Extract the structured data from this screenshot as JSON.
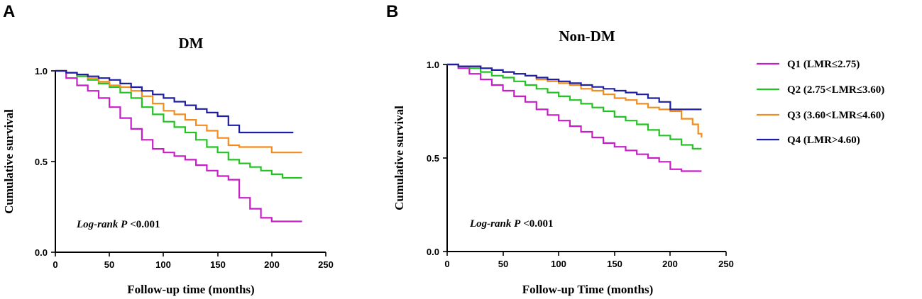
{
  "chart_data": [
    {
      "panel_label": "A",
      "type": "line",
      "step": true,
      "title": "DM",
      "xlabel": "Follow-up time (months)",
      "ylabel": "Cumulative survival",
      "xlim": [
        0,
        250
      ],
      "ylim": [
        0,
        1.0
      ],
      "xticks": [
        "0",
        "50",
        "100",
        "150",
        "200",
        "250"
      ],
      "yticks": [
        "0.0",
        "0.5",
        "1.0"
      ],
      "annotation": {
        "italic": "Log-rank P",
        "rest": "<0.001"
      },
      "series": [
        {
          "name": "Q1 (LMR≤2.75)",
          "color": "#c81ec8",
          "x": [
            0,
            10,
            20,
            30,
            40,
            50,
            60,
            70,
            80,
            90,
            100,
            110,
            120,
            130,
            140,
            150,
            160,
            170,
            180,
            190,
            200,
            210,
            220,
            228
          ],
          "y": [
            1.0,
            0.96,
            0.92,
            0.89,
            0.85,
            0.8,
            0.74,
            0.68,
            0.62,
            0.57,
            0.55,
            0.53,
            0.51,
            0.48,
            0.45,
            0.42,
            0.4,
            0.3,
            0.24,
            0.19,
            0.17,
            0.17,
            0.17,
            0.17
          ]
        },
        {
          "name": "Q2 (2.75<LMR≤3.60)",
          "color": "#22c322",
          "x": [
            0,
            10,
            20,
            30,
            40,
            50,
            60,
            70,
            80,
            90,
            100,
            110,
            120,
            130,
            140,
            150,
            160,
            170,
            180,
            190,
            200,
            210,
            220,
            228
          ],
          "y": [
            1.0,
            0.99,
            0.97,
            0.95,
            0.93,
            0.91,
            0.88,
            0.85,
            0.8,
            0.76,
            0.72,
            0.69,
            0.66,
            0.62,
            0.58,
            0.55,
            0.51,
            0.49,
            0.47,
            0.45,
            0.43,
            0.41,
            0.41,
            0.41
          ]
        },
        {
          "name": "Q3 (3.60<LMR≤4.60)",
          "color": "#f28c1e",
          "x": [
            0,
            10,
            20,
            30,
            40,
            50,
            60,
            70,
            80,
            90,
            100,
            110,
            120,
            130,
            140,
            150,
            160,
            170,
            180,
            190,
            200,
            210,
            220,
            228
          ],
          "y": [
            1.0,
            0.99,
            0.98,
            0.96,
            0.94,
            0.92,
            0.91,
            0.89,
            0.86,
            0.82,
            0.78,
            0.76,
            0.73,
            0.7,
            0.67,
            0.63,
            0.59,
            0.58,
            0.58,
            0.58,
            0.55,
            0.55,
            0.55,
            0.55
          ]
        },
        {
          "name": "Q4 (LMR>4.60)",
          "color": "#1e1ea0",
          "x": [
            0,
            10,
            20,
            30,
            40,
            50,
            60,
            70,
            80,
            90,
            100,
            110,
            120,
            130,
            140,
            150,
            160,
            170,
            180,
            190,
            200,
            210,
            220
          ],
          "y": [
            1.0,
            0.99,
            0.98,
            0.97,
            0.96,
            0.95,
            0.93,
            0.91,
            0.89,
            0.87,
            0.85,
            0.83,
            0.81,
            0.79,
            0.77,
            0.75,
            0.7,
            0.66,
            0.66,
            0.66,
            0.66,
            0.66,
            0.66
          ]
        }
      ]
    },
    {
      "panel_label": "B",
      "type": "line",
      "step": true,
      "title": "Non-DM",
      "xlabel": "Follow-up Time (months)",
      "ylabel": "Cumulative survival",
      "xlim": [
        0,
        250
      ],
      "ylim": [
        0,
        1.0
      ],
      "xticks": [
        "0",
        "50",
        "100",
        "150",
        "200",
        "250"
      ],
      "yticks": [
        "0.0",
        "0.5",
        "1.0"
      ],
      "annotation": {
        "italic": "Log-rank P",
        "rest": "<0.001"
      },
      "series": [
        {
          "name": "Q1 (LMR≤2.75)",
          "color": "#c81ec8",
          "x": [
            0,
            10,
            20,
            30,
            40,
            50,
            60,
            70,
            80,
            90,
            100,
            110,
            120,
            130,
            140,
            150,
            160,
            170,
            180,
            190,
            200,
            210,
            220,
            228
          ],
          "y": [
            1.0,
            0.98,
            0.95,
            0.92,
            0.89,
            0.86,
            0.83,
            0.8,
            0.76,
            0.73,
            0.7,
            0.67,
            0.64,
            0.61,
            0.58,
            0.56,
            0.54,
            0.52,
            0.5,
            0.48,
            0.44,
            0.43,
            0.43,
            0.43
          ]
        },
        {
          "name": "Q2 (2.75<LMR≤3.60)",
          "color": "#22c322",
          "x": [
            0,
            10,
            20,
            30,
            40,
            50,
            60,
            70,
            80,
            90,
            100,
            110,
            120,
            130,
            140,
            150,
            160,
            170,
            180,
            190,
            200,
            210,
            220,
            228
          ],
          "y": [
            1.0,
            0.99,
            0.98,
            0.96,
            0.94,
            0.93,
            0.91,
            0.89,
            0.87,
            0.85,
            0.83,
            0.81,
            0.79,
            0.77,
            0.75,
            0.72,
            0.7,
            0.68,
            0.65,
            0.62,
            0.6,
            0.57,
            0.55,
            0.55
          ]
        },
        {
          "name": "Q3 (3.60<LMR≤4.60)",
          "color": "#f28c1e",
          "x": [
            0,
            10,
            20,
            30,
            40,
            50,
            60,
            70,
            80,
            90,
            100,
            110,
            120,
            130,
            140,
            150,
            160,
            170,
            180,
            190,
            200,
            210,
            220,
            225,
            228
          ],
          "y": [
            1.0,
            0.99,
            0.99,
            0.98,
            0.97,
            0.96,
            0.95,
            0.94,
            0.92,
            0.91,
            0.9,
            0.89,
            0.87,
            0.86,
            0.84,
            0.82,
            0.81,
            0.79,
            0.77,
            0.76,
            0.75,
            0.71,
            0.68,
            0.63,
            0.61
          ]
        },
        {
          "name": "Q4 (LMR>4.60)",
          "color": "#1e1ea0",
          "x": [
            0,
            10,
            20,
            30,
            40,
            50,
            60,
            70,
            80,
            90,
            100,
            110,
            120,
            130,
            140,
            150,
            160,
            170,
            180,
            190,
            200,
            210,
            220,
            228
          ],
          "y": [
            1.0,
            0.99,
            0.99,
            0.98,
            0.97,
            0.96,
            0.95,
            0.94,
            0.93,
            0.92,
            0.91,
            0.9,
            0.89,
            0.88,
            0.87,
            0.86,
            0.85,
            0.84,
            0.82,
            0.8,
            0.76,
            0.76,
            0.76,
            0.76
          ]
        }
      ]
    }
  ],
  "legend": {
    "items": [
      {
        "label": "Q1 (LMR≤2.75)",
        "color": "#c81ec8"
      },
      {
        "label": "Q2 (2.75<LMR≤3.60)",
        "color": "#22c322"
      },
      {
        "label": "Q3 (3.60<LMR≤4.60)",
        "color": "#f28c1e"
      },
      {
        "label": "Q4 (LMR>4.60)",
        "color": "#1e1ea0"
      }
    ]
  }
}
